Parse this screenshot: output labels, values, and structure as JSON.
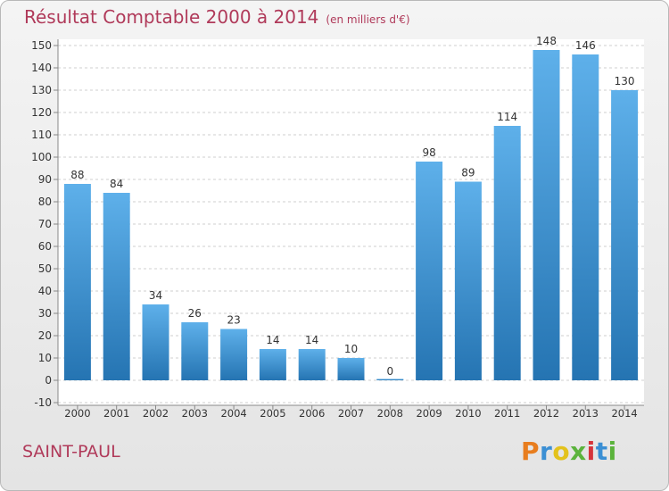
{
  "header": {
    "title": "Résultat Comptable 2000 à 2014",
    "unit": "(en milliers d'€)"
  },
  "footer": {
    "commune": "SAINT-PAUL",
    "logo_letters": [
      "P",
      "r",
      "o",
      "x",
      "i",
      "t",
      "i"
    ],
    "logo_colors": [
      "#e87d1e",
      "#3b8fd4",
      "#e3c21c",
      "#5bb33c",
      "#d6353b",
      "#3b8fd4",
      "#5bb33c"
    ]
  },
  "chart_data": {
    "type": "bar",
    "title": "Résultat Comptable 2000 à 2014",
    "categories": [
      "2000",
      "2001",
      "2002",
      "2003",
      "2004",
      "2005",
      "2006",
      "2007",
      "2008",
      "2009",
      "2010",
      "2011",
      "2012",
      "2013",
      "2014"
    ],
    "values": [
      88,
      84,
      34,
      26,
      23,
      14,
      14,
      10,
      0,
      98,
      89,
      114,
      148,
      146,
      130
    ],
    "ylim": [
      -10,
      150
    ],
    "yticks": [
      -10,
      0,
      10,
      20,
      30,
      40,
      50,
      60,
      70,
      80,
      90,
      100,
      110,
      120,
      130,
      140,
      150
    ],
    "grid": true,
    "colors": {
      "bar_top": "#5eb0ea",
      "bar_bottom": "#2574b2",
      "title": "#b03a5a",
      "grid": "#cfcfcf"
    }
  }
}
